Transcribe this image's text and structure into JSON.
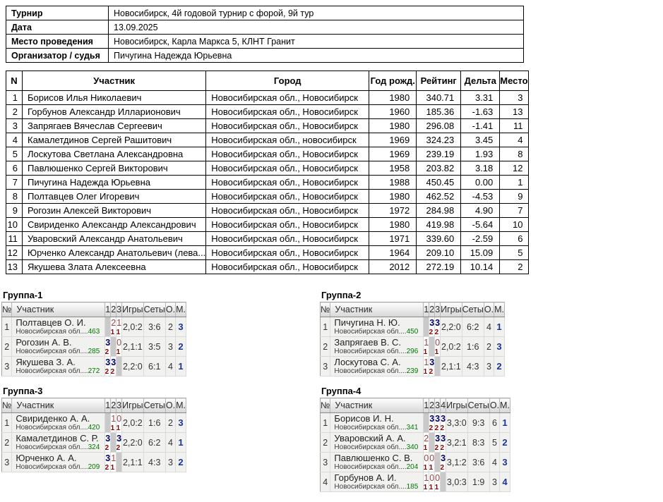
{
  "info": {
    "rows": [
      {
        "label": "Турнир",
        "value": "Новосибирск, 4й годовой турнир с форой, 9й тур"
      },
      {
        "label": "Дата",
        "value": "13.09.2025"
      },
      {
        "label": "Место проведения",
        "value": "Новосибирск, Карла Маркса 5, КЛНТ Гранит"
      },
      {
        "label": "Организатор / судья",
        "value": "Пичугина Надежда Юрьевна"
      }
    ]
  },
  "participants": {
    "headers": [
      "N",
      "Участник",
      "Город",
      "Год рожд.",
      "Рейтинг",
      "Дельта",
      "Место"
    ],
    "rows": [
      {
        "n": "1",
        "name": "Борисов Илья Николаевич",
        "city": "Новосибирская обл., Новосибирск",
        "born": "1980",
        "rating": "340.71",
        "delta": "3.31",
        "place": "3"
      },
      {
        "n": "2",
        "name": "Горбунов Александр Илларионович",
        "city": "Новосибирская обл., Новосибирск",
        "born": "1960",
        "rating": "185.36",
        "delta": "-1.63",
        "place": "13"
      },
      {
        "n": "3",
        "name": "Запрягаев Вячеслав Сергеевич",
        "city": "Новосибирская обл., Новосибирск",
        "born": "1980",
        "rating": "296.08",
        "delta": "-1.41",
        "place": "11"
      },
      {
        "n": "4",
        "name": "Камалетдинов Сергей Рашитович",
        "city": "Новосибирская обл., новосибирск",
        "born": "1969",
        "rating": "324.23",
        "delta": "3.45",
        "place": "4"
      },
      {
        "n": "5",
        "name": "Лоскутова Светлана Александровна",
        "city": "Новосибирская обл., Новосибирск",
        "born": "1969",
        "rating": "239.19",
        "delta": "1.93",
        "place": "8"
      },
      {
        "n": "6",
        "name": "Павлюшенко Сергей Викторович",
        "city": "Новосибирская обл., Новосибирск",
        "born": "1958",
        "rating": "203.82",
        "delta": "3.18",
        "place": "12"
      },
      {
        "n": "7",
        "name": "Пичугина Надежда Юрьевна",
        "city": "Новосибирская обл., Новосибирск",
        "born": "1988",
        "rating": "450.45",
        "delta": "0.00",
        "place": "1"
      },
      {
        "n": "8",
        "name": "Полтавцев Олег Игоревич",
        "city": "Новосибирская обл., Новосибирск",
        "born": "1980",
        "rating": "462.52",
        "delta": "-4.53",
        "place": "9"
      },
      {
        "n": "9",
        "name": "Рогозин Алексей Викторович",
        "city": "Новосибирская обл., Новосибирск",
        "born": "1972",
        "rating": "284.98",
        "delta": "4.90",
        "place": "7"
      },
      {
        "n": "10",
        "name": "Свириденко Александр Александрович",
        "city": "Новосибирская обл., Новосибирск",
        "born": "1980",
        "rating": "419.98",
        "delta": "-5.64",
        "place": "10"
      },
      {
        "n": "11",
        "name": "Уваровский Александр Анатольевич",
        "city": "Новосибирская обл., Новосибирск",
        "born": "1971",
        "rating": "339.60",
        "delta": "-2.59",
        "place": "6"
      },
      {
        "n": "12",
        "name": "Юрченко Александр Анатольевич (лева...",
        "city": "Новосибирская обл., Новосибирск",
        "born": "1964",
        "rating": "209.10",
        "delta": "15.09",
        "place": "5"
      },
      {
        "n": "13",
        "name": "Якушева Злата Алексеевна",
        "city": "Новосибирская обл., Новосибирск",
        "born": "2012",
        "rating": "272.19",
        "delta": "10.14",
        "place": "2"
      }
    ]
  },
  "groups": [
    {
      "title": "Группа-1",
      "headers": [
        "№",
        "Участник",
        "1",
        "2",
        "3",
        "Игры",
        "Сеты",
        "О.",
        "М."
      ],
      "players": [
        {
          "num": "1",
          "name": "Полтавцев О. И.",
          "region": "Новосибирская обл....",
          "rating": "463",
          "results": [
            {
              "self": true
            },
            {
              "score": "2:3",
              "hc": "1",
              "win": false
            },
            {
              "score": "1:3",
              "hc": "1",
              "win": false
            }
          ],
          "games": "2,0:2",
          "sets": "3:6",
          "points": "2",
          "place": "3"
        },
        {
          "num": "2",
          "name": "Рогозин А. В.",
          "region": "Новосибирская обл....",
          "rating": "285",
          "results": [
            {
              "score": "3:2",
              "hc": "2",
              "win": true
            },
            {
              "self": true
            },
            {
              "score": "0:3",
              "hc": "1",
              "win": false
            }
          ],
          "games": "2,1:1",
          "sets": "3:5",
          "points": "3",
          "place": "2"
        },
        {
          "num": "3",
          "name": "Якушева З. А.",
          "region": "Новосибирская обл....",
          "rating": "272",
          "results": [
            {
              "score": "3:1",
              "hc": "2",
              "win": true
            },
            {
              "score": "3:0",
              "hc": "2",
              "win": true
            },
            {
              "self": true
            }
          ],
          "games": "2,2:0",
          "sets": "6:1",
          "points": "4",
          "place": "1"
        }
      ]
    },
    {
      "title": "Группа-2",
      "headers": [
        "№",
        "Участник",
        "1",
        "2",
        "3",
        "Игры",
        "Сеты",
        "О.",
        "М."
      ],
      "players": [
        {
          "num": "1",
          "name": "Пичугина Н. Ю.",
          "region": "Новосибирская обл....",
          "rating": "450",
          "results": [
            {
              "self": true
            },
            {
              "score": "3:1",
              "hc": "2",
              "win": true
            },
            {
              "score": "3:1",
              "hc": "2",
              "win": true
            }
          ],
          "games": "2,2:0",
          "sets": "6:2",
          "points": "4",
          "place": "1"
        },
        {
          "num": "2",
          "name": "Запрягаев В. С.",
          "region": "Новосибирская обл....",
          "rating": "296",
          "results": [
            {
              "score": "1:3",
              "hc": "1",
              "win": false
            },
            {
              "self": true
            },
            {
              "score": "0:3",
              "hc": "1",
              "win": false
            }
          ],
          "games": "2,0:2",
          "sets": "1:6",
          "points": "2",
          "place": "3"
        },
        {
          "num": "3",
          "name": "Лоскутова С. А.",
          "region": "Новосибирская обл....",
          "rating": "239",
          "results": [
            {
              "score": "1:3",
              "hc": "1",
              "win": false
            },
            {
              "score": "3:0",
              "hc": "2",
              "win": true
            },
            {
              "self": true
            }
          ],
          "games": "2,1:1",
          "sets": "4:3",
          "points": "3",
          "place": "2"
        }
      ]
    },
    {
      "title": "Группа-3",
      "headers": [
        "№",
        "Участник",
        "1",
        "2",
        "3",
        "Игры",
        "Сеты",
        "О.",
        "М."
      ],
      "players": [
        {
          "num": "1",
          "name": "Свириденко А. А.",
          "region": "Новосибирская обл....",
          "rating": "420",
          "results": [
            {
              "self": true
            },
            {
              "score": "1:3",
              "hc": "1",
              "win": false
            },
            {
              "score": "0:3",
              "hc": "1",
              "win": false
            }
          ],
          "games": "2,0:2",
          "sets": "1:6",
          "points": "2",
          "place": "3"
        },
        {
          "num": "2",
          "name": "Камалетдинов С. Р.",
          "region": "Новосибирская обл....",
          "rating": "324",
          "results": [
            {
              "score": "3:1",
              "hc": "2",
              "win": true
            },
            {
              "self": true
            },
            {
              "score": "3:1",
              "hc": "2",
              "win": true
            }
          ],
          "games": "2,2:0",
          "sets": "6:2",
          "points": "4",
          "place": "1"
        },
        {
          "num": "3",
          "name": "Юрченко А. А.",
          "region": "Новосибирская обл....",
          "rating": "209",
          "results": [
            {
              "score": "3:0",
              "hc": "2",
              "win": true
            },
            {
              "score": "1:3",
              "hc": "1",
              "win": false
            },
            {
              "self": true
            }
          ],
          "games": "2,1:1",
          "sets": "4:3",
          "points": "3",
          "place": "2"
        }
      ]
    },
    {
      "title": "Группа-4",
      "headers": [
        "№",
        "Участник",
        "1",
        "2",
        "3",
        "4",
        "Игры",
        "Сеты",
        "О.",
        "М."
      ],
      "players": [
        {
          "num": "1",
          "name": "Борисов И. Н.",
          "region": "Новосибирская обл....",
          "rating": "341",
          "results": [
            {
              "self": true
            },
            {
              "score": "3:2",
              "hc": "2",
              "win": true
            },
            {
              "score": "3:0",
              "hc": "2",
              "win": true
            },
            {
              "score": "3:1",
              "hc": "2",
              "win": true
            }
          ],
          "games": "3,3:0",
          "sets": "9:3",
          "points": "6",
          "place": "1"
        },
        {
          "num": "2",
          "name": "Уваровский А. А.",
          "region": "Новосибирская обл....",
          "rating": "340",
          "results": [
            {
              "score": "2:3",
              "hc": "1",
              "win": false
            },
            {
              "self": true
            },
            {
              "score": "3:0",
              "hc": "2",
              "win": true
            },
            {
              "score": "3:0",
              "hc": "2",
              "win": true
            }
          ],
          "games": "3,2:1",
          "sets": "8:3",
          "points": "5",
          "place": "2"
        },
        {
          "num": "3",
          "name": "Павлюшенко С. В.",
          "region": "Новосибирская обл....",
          "rating": "204",
          "results": [
            {
              "score": "0:3",
              "hc": "1",
              "win": false
            },
            {
              "score": "0:3",
              "hc": "1",
              "win": false
            },
            {
              "self": true
            },
            {
              "score": "3:0",
              "hc": "2",
              "win": true
            }
          ],
          "games": "3,1:2",
          "sets": "3:6",
          "points": "4",
          "place": "3"
        },
        {
          "num": "4",
          "name": "Горбунов А. И.",
          "region": "Новосибирская обл....",
          "rating": "185",
          "results": [
            {
              "score": "1:3",
              "hc": "1",
              "win": false
            },
            {
              "score": "0:3",
              "hc": "1",
              "win": false
            },
            {
              "score": "0:3",
              "hc": "1",
              "win": false
            },
            {
              "self": true
            }
          ],
          "games": "3,0:3",
          "sets": "1:9",
          "points": "3",
          "place": "4"
        }
      ]
    }
  ],
  "colors": {
    "win_score": "#000066",
    "lose_score": "#994444",
    "handicap": "#8b0000",
    "rating_green": "#007700",
    "place_navy": "#1a3399",
    "self_cell_gray": "#c9c9c9"
  }
}
